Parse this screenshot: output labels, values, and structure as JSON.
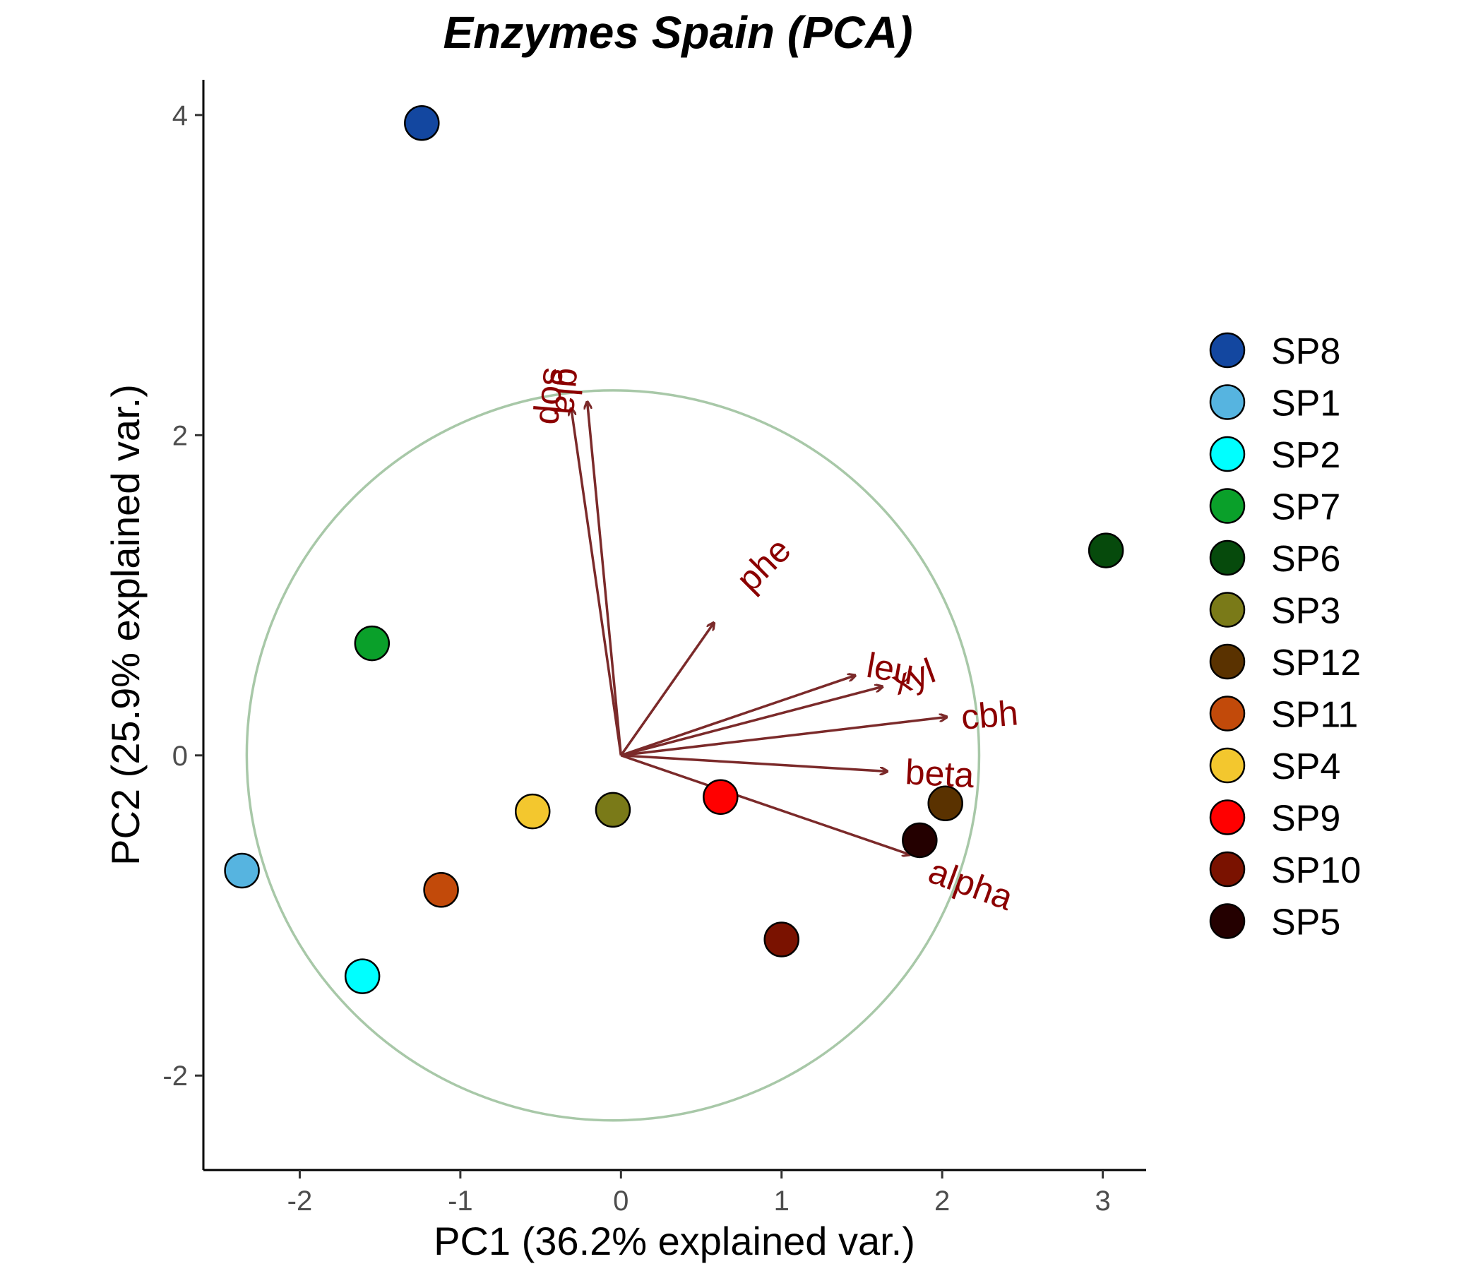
{
  "chart_data": {
    "type": "scatter",
    "title": "Enzymes Spain (PCA)",
    "xlabel": "PC1 (36.2% explained var.)",
    "ylabel": "PC2 (25.9% explained var.)",
    "xlim": [
      -2.6,
      3.27
    ],
    "ylim": [
      -2.59,
      4.22
    ],
    "x_ticks": [
      -2,
      -1,
      0,
      1,
      2,
      3
    ],
    "y_ticks": [
      -2,
      0,
      2,
      4
    ],
    "grid": false,
    "legend_position": "right",
    "circle": {
      "center": [
        -0.05,
        0.0
      ],
      "radius_x": 2.28,
      "radius_y": 2.28,
      "color": "#a8c8a8"
    },
    "arrow_color": "#7b2a2a",
    "label_color": "#8b0000",
    "points": [
      {
        "name": "SP8",
        "x": -1.24,
        "y": 3.95,
        "color": "#1347a0"
      },
      {
        "name": "SP1",
        "x": -2.36,
        "y": -0.72,
        "color": "#56b4e0"
      },
      {
        "name": "SP2",
        "x": -1.61,
        "y": -1.38,
        "color": "#00ffff"
      },
      {
        "name": "SP7",
        "x": -1.55,
        "y": 0.7,
        "color": "#0aa02a"
      },
      {
        "name": "SP6",
        "x": 3.02,
        "y": 1.28,
        "color": "#064a0c"
      },
      {
        "name": "SP3",
        "x": -0.05,
        "y": -0.34,
        "color": "#7a7a18"
      },
      {
        "name": "SP12",
        "x": 2.02,
        "y": -0.3,
        "color": "#5a3200"
      },
      {
        "name": "SP11",
        "x": -1.12,
        "y": -0.84,
        "color": "#c24a0a"
      },
      {
        "name": "SP4",
        "x": -0.55,
        "y": -0.35,
        "color": "#f3c72e"
      },
      {
        "name": "SP9",
        "x": 0.62,
        "y": -0.26,
        "color": "#ff0000"
      },
      {
        "name": "SP10",
        "x": 1.0,
        "y": -1.15,
        "color": "#7a1200"
      },
      {
        "name": "SP5",
        "x": 1.86,
        "y": -0.53,
        "color": "#240000"
      }
    ],
    "loadings": [
      {
        "name": "gla",
        "x": -0.21,
        "y": 2.21,
        "label_x": -0.33,
        "label_y": 2.42,
        "label_rotate": 95
      },
      {
        "name": "sop",
        "x": -0.31,
        "y": 2.17,
        "label_x": -0.42,
        "label_y": 2.42,
        "label_rotate": 95
      },
      {
        "name": "phe",
        "x": 0.58,
        "y": 0.83,
        "label_x": 0.77,
        "label_y": 1.05,
        "label_rotate": -45
      },
      {
        "name": "leu",
        "x": 1.46,
        "y": 0.5,
        "label_x": 1.53,
        "label_y": 0.55,
        "label_rotate": 10
      },
      {
        "name": "xyl",
        "x": 1.63,
        "y": 0.43,
        "label_x": 1.7,
        "label_y": 0.43,
        "label_rotate": -20
      },
      {
        "name": "cbh",
        "x": 2.03,
        "y": 0.24,
        "label_x": 2.12,
        "label_y": 0.22,
        "label_rotate": -5
      },
      {
        "name": "beta",
        "x": 1.66,
        "y": -0.1,
        "label_x": 1.77,
        "label_y": -0.12,
        "label_rotate": 3
      },
      {
        "name": "alpha",
        "x": 1.8,
        "y": -0.62,
        "label_x": 1.92,
        "label_y": -0.73,
        "label_rotate": 20
      }
    ]
  }
}
